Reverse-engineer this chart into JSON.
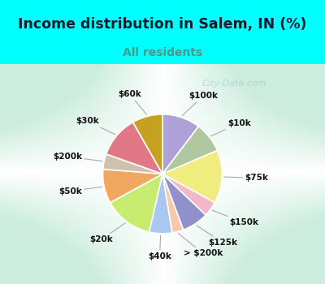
{
  "title": "Income distribution in Salem, IN (%)",
  "subtitle": "All residents",
  "title_color": "#1a1a2e",
  "subtitle_color": "#4a9a8a",
  "bg_cyan": "#00ffff",
  "watermark": "City-Data.com",
  "labels": [
    "$100k",
    "$10k",
    "$75k",
    "$150k",
    "$125k",
    "> $200k",
    "$40k",
    "$20k",
    "$50k",
    "$200k",
    "$30k",
    "$60k"
  ],
  "values": [
    10,
    8,
    14,
    4,
    7,
    3,
    6,
    13,
    9,
    4,
    11,
    8
  ],
  "colors": [
    "#b0a0d8",
    "#b0c8a0",
    "#f0ec80",
    "#f0b8c8",
    "#9090cc",
    "#f8c8a8",
    "#a8c8f0",
    "#c8ec70",
    "#f0a860",
    "#d0c0b0",
    "#e07888",
    "#c8a020"
  ],
  "title_fontsize": 12.5,
  "subtitle_fontsize": 10,
  "label_fontsize": 7.5
}
